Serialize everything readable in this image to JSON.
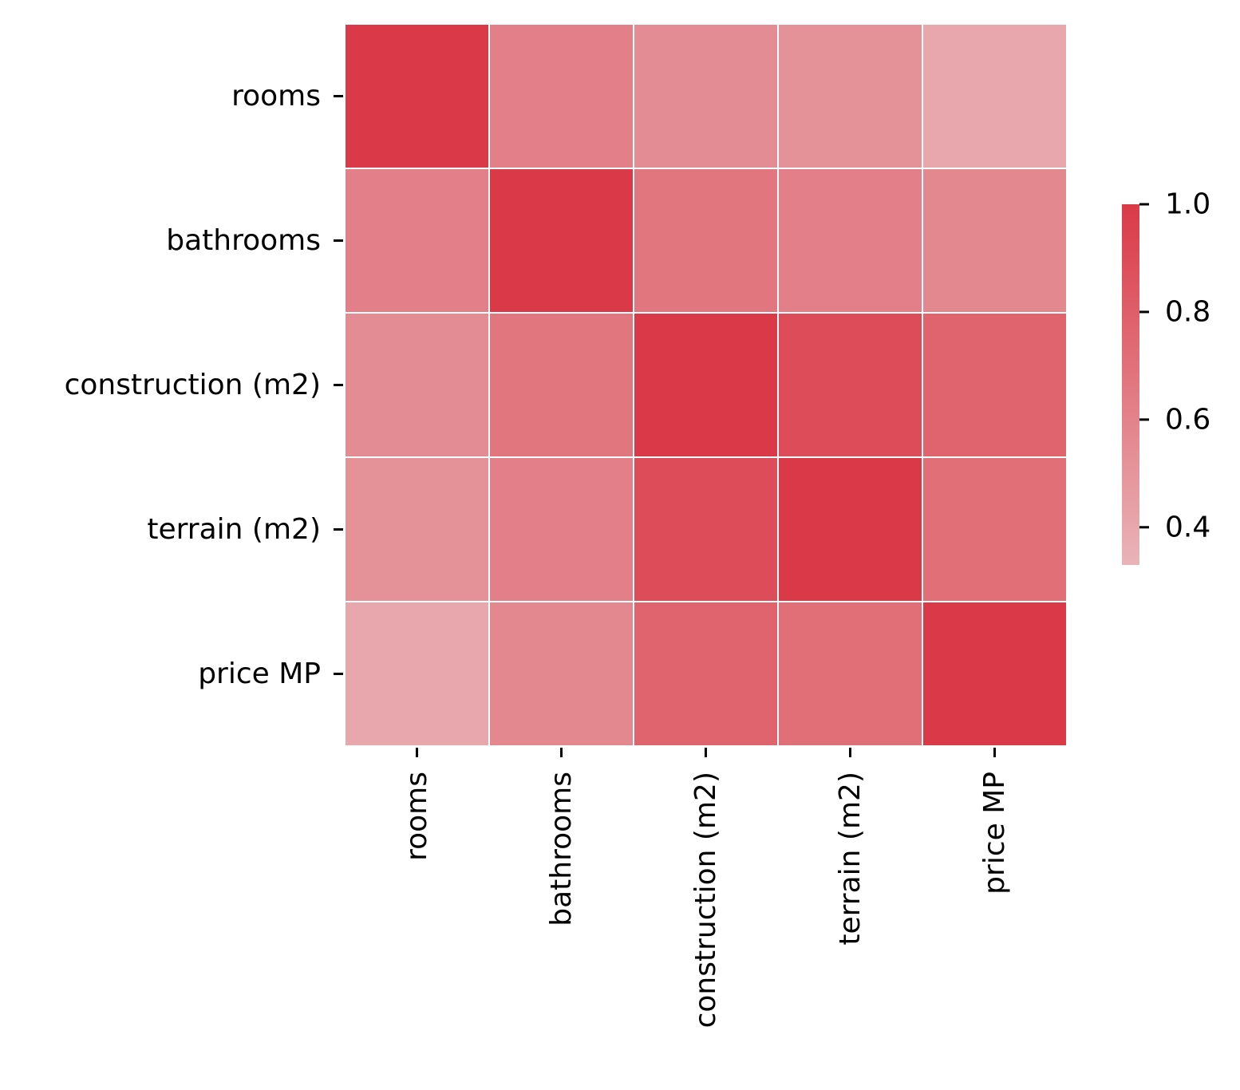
{
  "chart_data": {
    "type": "heatmap",
    "title": "",
    "xlabel": "",
    "ylabel": "",
    "x_categories": [
      "rooms",
      "bathrooms",
      "construction (m2)",
      "terrain (m2)",
      "price MP"
    ],
    "y_categories": [
      "rooms",
      "bathrooms",
      "construction (m2)",
      "terrain (m2)",
      "price MP"
    ],
    "values": [
      [
        1.0,
        0.62,
        0.55,
        0.52,
        0.4
      ],
      [
        0.62,
        1.0,
        0.67,
        0.62,
        0.57
      ],
      [
        0.55,
        0.67,
        1.0,
        0.9,
        0.77
      ],
      [
        0.52,
        0.62,
        0.9,
        1.0,
        0.71
      ],
      [
        0.4,
        0.57,
        0.77,
        0.71,
        1.0
      ]
    ],
    "colorbar": {
      "min": 0.33,
      "max": 1.0,
      "ticks": [
        "0.4",
        "0.6",
        "0.8",
        "1.0"
      ],
      "color_low": "#e9b4b8",
      "color_high": "#da3a48"
    },
    "grid": "white cell separators",
    "legend": "colorbar right"
  }
}
